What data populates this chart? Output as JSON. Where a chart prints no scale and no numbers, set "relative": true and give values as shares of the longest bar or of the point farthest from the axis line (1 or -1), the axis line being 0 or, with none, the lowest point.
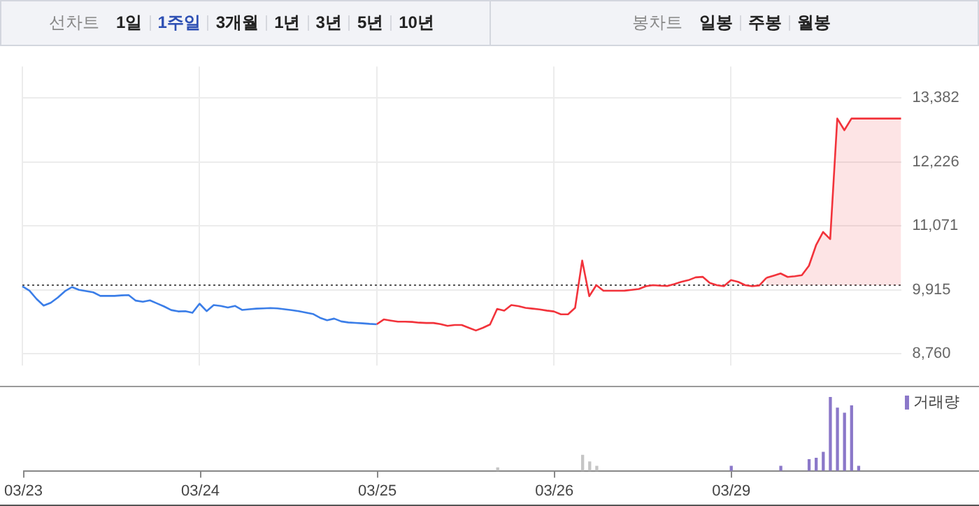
{
  "chart_data": [
    {
      "type": "other",
      "annotations": [
        "선차트",
        "1일",
        "1주일",
        "3개월",
        "1년",
        "3년",
        "5년",
        "10년"
      ]
    },
    {
      "type": "other",
      "annotations": [
        "봉차트",
        "일봉",
        "주봉",
        "월봉"
      ]
    },
    {
      "type": "line",
      "categories": [
        null,
        null,
        null,
        null,
        null,
        null,
        null,
        null,
        null,
        null,
        null,
        null,
        null,
        null,
        null,
        null,
        null,
        null,
        null,
        null,
        null,
        null,
        null,
        null,
        null,
        null,
        null,
        null,
        null,
        null,
        null,
        null,
        null,
        null,
        null,
        null,
        null,
        null,
        null,
        null,
        null,
        null,
        null,
        null,
        null,
        null,
        null,
        null,
        null,
        null,
        null,
        null,
        null,
        null,
        null,
        null,
        null,
        null,
        null,
        null,
        null,
        null,
        null,
        null,
        null,
        null,
        null,
        null,
        null,
        null,
        null,
        null,
        null,
        null,
        null,
        null,
        null,
        null,
        null,
        null,
        null,
        null,
        null,
        null,
        null,
        null,
        null,
        null,
        null,
        null,
        null,
        null,
        null,
        null,
        null,
        null,
        null,
        null,
        null,
        null,
        null,
        null,
        null,
        null,
        null,
        null,
        null,
        null,
        null,
        null,
        null,
        null,
        null,
        null,
        null,
        null,
        null,
        null,
        null,
        null,
        null,
        null,
        null,
        null,
        null
      ],
      "ylim": [
        8550,
        13950
      ],
      "yticks": [
        {
          "value": 8760,
          "label": "8,760"
        },
        {
          "value": 9915,
          "label": "9,915"
        },
        {
          "value": 11071,
          "label": "11,071"
        },
        {
          "value": 12226,
          "label": "12,226"
        },
        {
          "value": 13382,
          "label": "13,382"
        }
      ],
      "grid": true,
      "tick_labels": "y",
      "marker": "none",
      "ref_lines": [
        {
          "axis": "y",
          "value": 10000,
          "label": null,
          "color": "#555555",
          "line_style": "dotted"
        }
      ],
      "series": [
        {
          "color": "#3b7ee8",
          "values": [
            9978,
            9900,
            9750,
            9630,
            9680,
            9775,
            9890,
            9965,
            9915,
            9892,
            9870,
            9806,
            9806,
            9806,
            9815,
            9820,
            9720,
            9700,
            9725,
            9670,
            9615,
            9550,
            9525,
            9530,
            9500,
            9665,
            9530,
            9640,
            9625,
            9595,
            9625,
            9552,
            9565,
            9575,
            9580,
            9587,
            9580,
            9565,
            9548,
            9530,
            9505,
            9480,
            9410,
            9365,
            9395,
            9345,
            9326,
            9318,
            9310,
            9300,
            9293,
            null,
            null,
            null,
            null,
            null,
            null,
            null,
            null,
            null,
            null,
            null,
            null,
            null,
            null,
            null,
            null,
            null,
            null,
            null,
            null,
            null,
            null,
            null,
            null,
            null,
            null,
            null,
            null,
            null,
            null,
            null,
            null,
            null,
            null,
            null,
            null,
            null,
            null,
            null,
            null,
            null,
            null,
            null,
            null,
            null,
            null,
            null,
            null,
            null,
            null,
            null,
            null,
            null,
            null,
            null,
            null,
            null,
            null,
            null,
            null,
            null,
            null,
            null,
            null,
            null,
            null,
            null,
            null,
            null,
            null,
            null,
            null,
            null,
            null
          ]
        },
        {
          "color": "#f2333b",
          "values": [
            null,
            null,
            null,
            null,
            null,
            null,
            null,
            null,
            null,
            null,
            null,
            null,
            null,
            null,
            null,
            null,
            null,
            null,
            null,
            null,
            null,
            null,
            null,
            null,
            null,
            null,
            null,
            null,
            null,
            null,
            null,
            null,
            null,
            null,
            null,
            null,
            null,
            null,
            null,
            null,
            null,
            null,
            null,
            null,
            null,
            null,
            null,
            null,
            null,
            null,
            9293,
            9380,
            9360,
            9339,
            9339,
            9335,
            9322,
            9316,
            9316,
            9295,
            9265,
            9280,
            9280,
            9230,
            9180,
            9230,
            9290,
            9570,
            9540,
            9640,
            9620,
            9589,
            9575,
            9560,
            9540,
            9525,
            9472,
            9472,
            9589,
            10444,
            9800,
            10000,
            9899,
            9899,
            9899,
            9900,
            9915,
            9930,
            9980,
            10000,
            9990,
            9985,
            10020,
            10060,
            10090,
            10140,
            10150,
            10040,
            10000,
            9980,
            10090,
            10060,
            10000,
            9980,
            9995,
            10132,
            null,
            null,
            null,
            null,
            null,
            null,
            null,
            null,
            null,
            null,
            null,
            null,
            null,
            null,
            null,
            null,
            null,
            null,
            null
          ]
        },
        {
          "type": "area",
          "color": "#f2333b",
          "values": [
            null,
            null,
            null,
            null,
            null,
            null,
            null,
            null,
            null,
            null,
            null,
            null,
            null,
            null,
            null,
            null,
            null,
            null,
            null,
            null,
            null,
            null,
            null,
            null,
            null,
            null,
            null,
            null,
            null,
            null,
            null,
            null,
            null,
            null,
            null,
            null,
            null,
            null,
            null,
            null,
            null,
            null,
            null,
            null,
            null,
            null,
            null,
            null,
            null,
            null,
            null,
            null,
            null,
            null,
            null,
            null,
            null,
            null,
            null,
            null,
            null,
            null,
            null,
            null,
            null,
            null,
            null,
            null,
            null,
            null,
            null,
            null,
            null,
            null,
            null,
            null,
            null,
            null,
            null,
            null,
            null,
            null,
            null,
            null,
            null,
            null,
            null,
            null,
            null,
            null,
            null,
            null,
            null,
            null,
            null,
            null,
            null,
            null,
            null,
            null,
            null,
            null,
            null,
            null,
            null,
            10132,
            10170,
            10211,
            10148,
            10160,
            10180,
            10350,
            10720,
            10960,
            10832,
            13010,
            12800,
            13010,
            13010,
            13010,
            13010,
            13010,
            13010,
            13010,
            13010
          ]
        }
      ]
    },
    {
      "type": "bar",
      "relative": true,
      "categories": [
        "03/23",
        null,
        null,
        null,
        null,
        null,
        null,
        null,
        null,
        null,
        null,
        null,
        null,
        null,
        null,
        null,
        null,
        null,
        null,
        null,
        null,
        null,
        null,
        null,
        null,
        "03/24",
        null,
        null,
        null,
        null,
        null,
        null,
        null,
        null,
        null,
        null,
        null,
        null,
        null,
        null,
        null,
        null,
        null,
        null,
        null,
        null,
        null,
        null,
        null,
        null,
        "03/25",
        null,
        null,
        null,
        null,
        null,
        null,
        null,
        null,
        null,
        null,
        null,
        null,
        null,
        null,
        null,
        null,
        null,
        null,
        null,
        null,
        null,
        null,
        null,
        null,
        "03/26",
        null,
        null,
        null,
        null,
        null,
        null,
        null,
        null,
        null,
        null,
        null,
        null,
        null,
        null,
        null,
        null,
        null,
        null,
        null,
        null,
        null,
        null,
        null,
        null,
        "03/29",
        null,
        null,
        null,
        null,
        null,
        null,
        null,
        null,
        null,
        null,
        null,
        null,
        null,
        null,
        null,
        null,
        null,
        null,
        null,
        null,
        null,
        null,
        null,
        null,
        null,
        null,
        null,
        null,
        null,
        null,
        null,
        null,
        null,
        null,
        null
      ],
      "legend": "top right",
      "series": [
        {
          "color": "#c5c5c5",
          "values": [
            null,
            null,
            null,
            null,
            null,
            null,
            null,
            null,
            null,
            null,
            null,
            null,
            null,
            null,
            null,
            null,
            null,
            null,
            null,
            null,
            null,
            null,
            null,
            null,
            null,
            null,
            null,
            null,
            null,
            null,
            null,
            null,
            null,
            null,
            null,
            null,
            null,
            null,
            null,
            null,
            null,
            null,
            null,
            null,
            null,
            null,
            null,
            null,
            null,
            null,
            null,
            null,
            null,
            null,
            null,
            null,
            null,
            null,
            null,
            null,
            null,
            null,
            null,
            null,
            null,
            null,
            null,
            0.04,
            null,
            null,
            null,
            null,
            null,
            null,
            null,
            null,
            null,
            null,
            null,
            0.21,
            0.12,
            0.06,
            null,
            null,
            null,
            null,
            null,
            null,
            null,
            null,
            null,
            null,
            null,
            null,
            null,
            null,
            null,
            null,
            null,
            null,
            null,
            null,
            null,
            null,
            null,
            null,
            null,
            null,
            null,
            null,
            null,
            null,
            null,
            null,
            null,
            null,
            null,
            null,
            null,
            null,
            null,
            null,
            null,
            null,
            null,
            null,
            null,
            null,
            null,
            null,
            null,
            null,
            null,
            null,
            null,
            null
          ]
        },
        {
          "name": "거래량",
          "color": "#8b78c9",
          "values": [
            null,
            null,
            null,
            null,
            null,
            null,
            null,
            null,
            null,
            null,
            null,
            null,
            null,
            null,
            null,
            null,
            null,
            null,
            null,
            null,
            null,
            null,
            null,
            null,
            null,
            null,
            null,
            null,
            null,
            null,
            null,
            null,
            null,
            null,
            null,
            null,
            null,
            null,
            null,
            null,
            null,
            null,
            null,
            null,
            null,
            null,
            null,
            null,
            null,
            null,
            null,
            null,
            null,
            null,
            null,
            null,
            null,
            null,
            null,
            null,
            null,
            null,
            null,
            null,
            null,
            null,
            null,
            null,
            null,
            null,
            null,
            null,
            null,
            null,
            null,
            null,
            null,
            null,
            null,
            null,
            null,
            null,
            null,
            null,
            null,
            null,
            null,
            null,
            null,
            null,
            null,
            null,
            null,
            null,
            null,
            null,
            null,
            null,
            null,
            null,
            0.06,
            null,
            null,
            null,
            null,
            null,
            null,
            0.06,
            null,
            null,
            null,
            0.15,
            0.17,
            0.25,
            1,
            0.85,
            0.78,
            0.88,
            0.06,
            null,
            null,
            null,
            null,
            null,
            null,
            null,
            null,
            null,
            null,
            null,
            null,
            null,
            null,
            null,
            null,
            null
          ]
        }
      ]
    }
  ]
}
